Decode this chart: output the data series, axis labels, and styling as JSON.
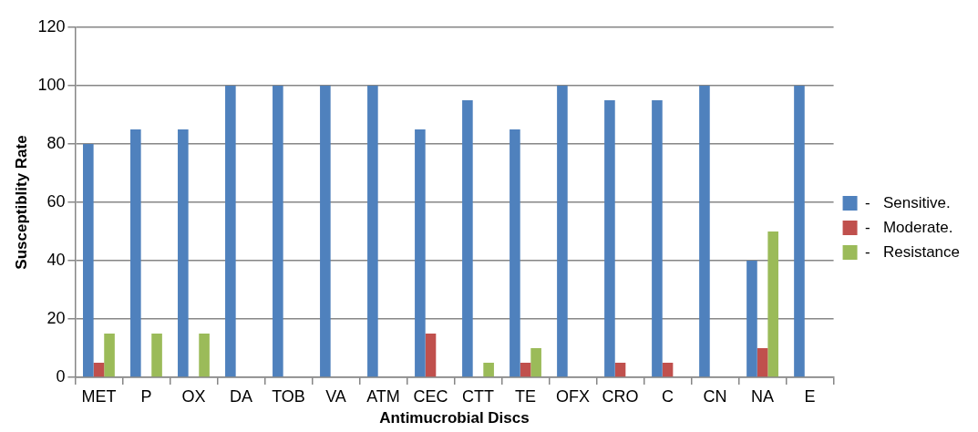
{
  "chart_data": {
    "type": "bar",
    "xlabel": "Antimucrobial Discs",
    "ylabel": "Susceptiblity Rate",
    "categories": [
      "MET",
      "P",
      "OX",
      "DA",
      "TOB",
      "VA",
      "ATM",
      "CEC",
      "CTT",
      "TE",
      "OFX",
      "CRO",
      "C",
      "CN",
      "NA",
      "E"
    ],
    "series": [
      {
        "name": "-   Sensitive.",
        "color": "#4f81bd",
        "values": [
          80,
          85,
          85,
          100,
          100,
          100,
          100,
          85,
          95,
          85,
          100,
          95,
          95,
          100,
          40,
          100
        ]
      },
      {
        "name": "-   Moderate.",
        "color": "#c0504d",
        "values": [
          5,
          0,
          0,
          0,
          0,
          0,
          0,
          15,
          0,
          5,
          0,
          5,
          5,
          0,
          10,
          0
        ]
      },
      {
        "name": "-   Resistance",
        "color": "#9bbb59",
        "values": [
          15,
          15,
          15,
          0,
          0,
          0,
          0,
          0,
          5,
          10,
          0,
          0,
          0,
          0,
          50,
          0
        ]
      }
    ],
    "ylim": [
      0,
      120
    ],
    "yticks": [
      0,
      20,
      40,
      60,
      80,
      100,
      120
    ],
    "grid": "y",
    "legend": "right"
  }
}
